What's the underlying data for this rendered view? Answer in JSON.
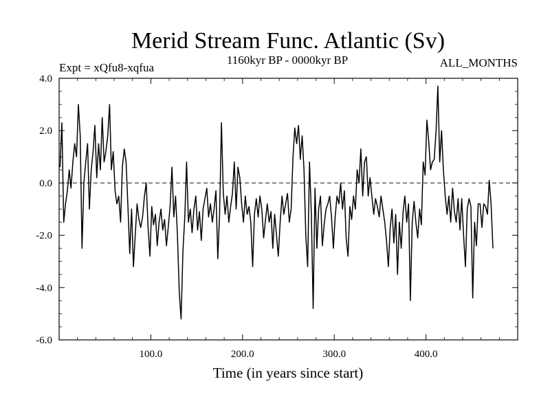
{
  "chart_data": {
    "type": "line",
    "title": "Merid Stream Func. Atlantic (Sv)",
    "left_subtitle": "Expt = xQfu8-xqfua",
    "center_subtitle": "1160kyr BP - 0000kyr BP",
    "right_subtitle": "ALL_MONTHS",
    "xlabel": "Time (in years since start)",
    "ylabel": "",
    "xlim": [
      0,
      500
    ],
    "ylim": [
      -6,
      4
    ],
    "xticks": [
      100,
      200,
      300,
      400
    ],
    "xtick_labels": [
      "100.0",
      "200.0",
      "300.0",
      "400.0"
    ],
    "yticks": [
      4,
      2,
      0,
      -2,
      -4,
      -6
    ],
    "ytick_labels": [
      "4.0",
      "2.0",
      "0.0",
      "-2.0",
      "-4.0",
      "-6.0"
    ],
    "reference_line": 0,
    "series": [
      {
        "name": "Merid Stream Func. Atlantic",
        "x_start": 1,
        "x_step": 2,
        "values": [
          0.6,
          2.3,
          -1.5,
          -0.8,
          -0.3,
          0.5,
          -0.2,
          0.8,
          1.5,
          1.0,
          3.0,
          1.8,
          -2.5,
          0.0,
          0.8,
          1.5,
          -1.0,
          0.5,
          1.2,
          2.2,
          0.2,
          1.5,
          0.5,
          2.5,
          0.8,
          1.2,
          1.8,
          3.0,
          0.5,
          1.2,
          -0.3,
          -0.8,
          -0.5,
          -1.5,
          0.6,
          1.3,
          0.8,
          -0.9,
          -2.7,
          -1.0,
          -3.2,
          -2.0,
          -0.8,
          -1.4,
          -1.7,
          -1.3,
          -0.5,
          0.0,
          -1.7,
          -2.8,
          -0.9,
          -1.6,
          -1.2,
          -2.4,
          -1.5,
          -1.0,
          -1.8,
          -1.4,
          -2.4,
          -1.7,
          -0.9,
          0.6,
          -1.3,
          -0.5,
          -2.0,
          -4.2,
          -5.2,
          -2.6,
          -1.3,
          0.8,
          -1.5,
          -1.0,
          -1.9,
          -1.0,
          -0.5,
          -1.8,
          -1.1,
          -2.2,
          -1.0,
          -0.6,
          -0.2,
          -1.3,
          -0.8,
          -1.5,
          -1.0,
          -0.3,
          -2.9,
          -1.2,
          2.3,
          -0.4,
          -1.2,
          -0.5,
          -1.5,
          -0.9,
          -0.4,
          0.8,
          -1.0,
          0.6,
          0.2,
          -0.8,
          -1.5,
          -0.5,
          -1.2,
          -0.9,
          -1.5,
          -3.2,
          -1.2,
          -0.6,
          -1.3,
          -0.5,
          -1.0,
          -2.1,
          -1.4,
          -0.8,
          -1.5,
          -1.1,
          -2.5,
          -1.2,
          -2.0,
          -2.8,
          -1.5,
          -0.5,
          -1.2,
          -0.8,
          -0.4,
          -1.5,
          -1.0,
          1.0,
          2.1,
          1.5,
          2.2,
          0.9,
          1.8,
          0.5,
          -2.0,
          -3.2,
          0.8,
          -1.2,
          -4.8,
          -0.2,
          -2.5,
          -1.0,
          -0.5,
          -2.4,
          -1.6,
          -1.0,
          -0.8,
          -0.5,
          -1.3,
          -2.5,
          -1.3,
          -0.5,
          -0.8,
          0.0,
          -1.0,
          -0.3,
          -2.1,
          -2.8,
          -0.9,
          -1.4,
          -0.5,
          -1.0,
          0.5,
          0.0,
          1.3,
          -0.5,
          0.8,
          1.0,
          -0.5,
          0.2,
          -0.5,
          -1.2,
          -0.6,
          -0.9,
          -1.3,
          -0.5,
          -1.0,
          -1.5,
          -2.2,
          -3.2,
          -1.7,
          -1.0,
          -2.3,
          -1.2,
          -3.5,
          -1.5,
          -2.5,
          -1.1,
          -0.5,
          -1.5,
          -0.8,
          -4.5,
          -1.5,
          -0.7,
          -1.5,
          -2.1,
          -1.0,
          -1.6,
          0.8,
          0.3,
          2.4,
          1.6,
          0.5,
          0.8,
          0.9,
          2.0,
          3.7,
          0.8,
          2.0,
          0.5,
          -0.5,
          -1.2,
          -0.5,
          -1.5,
          -0.2,
          -1.1,
          -1.5,
          -0.6,
          -1.8,
          -0.6,
          -2.0,
          -3.2,
          -1.0,
          -0.6,
          -0.9,
          -4.4,
          -1.5,
          -2.4,
          -0.8,
          -0.8,
          -1.7,
          -0.8,
          -0.9,
          -1.2,
          0.1,
          -0.8,
          -2.5
        ]
      }
    ]
  }
}
